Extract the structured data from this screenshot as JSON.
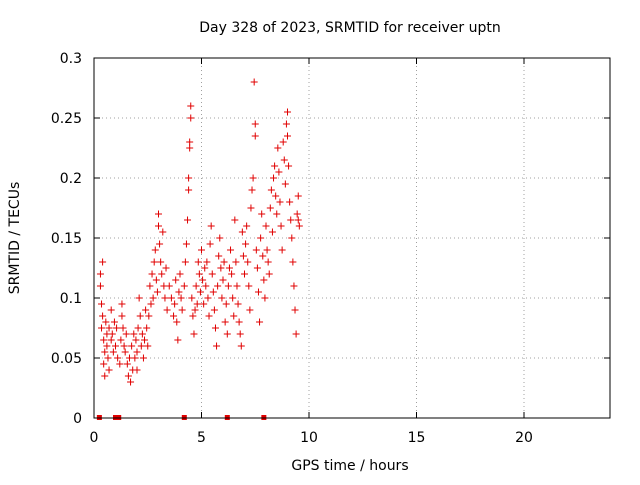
{
  "chart_data": {
    "type": "scatter",
    "title": "Day 328 of 2023, SRMTID for receiver uptn",
    "xlabel": "GPS time / hours",
    "ylabel": "SRMTID / TECUs",
    "xlim": [
      0,
      24
    ],
    "ylim": [
      0,
      0.3
    ],
    "grid": true,
    "x_ticks": [
      0,
      5,
      10,
      15,
      20
    ],
    "y_ticks": [
      0,
      0.05,
      0.1,
      0.15,
      0.2,
      0.25,
      0.3
    ],
    "x_tick_labels": [
      "0",
      "5",
      "10",
      "15",
      "20"
    ],
    "y_tick_labels": [
      "0",
      "0.05",
      "0.1",
      "0.15",
      "0.2",
      "0.25",
      "0.3"
    ],
    "marker": "+",
    "color": "#e00000",
    "series": [
      {
        "name": "SRMTID",
        "points": [
          [
            0.3,
            0.12
          ],
          [
            0.3,
            0.11
          ],
          [
            0.35,
            0.095
          ],
          [
            0.35,
            0.075
          ],
          [
            0.4,
            0.13
          ],
          [
            0.4,
            0.085
          ],
          [
            0.45,
            0.065
          ],
          [
            0.45,
            0.045
          ],
          [
            0.5,
            0.035
          ],
          [
            0.5,
            0.055
          ],
          [
            0.55,
            0.08
          ],
          [
            0.6,
            0.07
          ],
          [
            0.6,
            0.06
          ],
          [
            0.65,
            0.05
          ],
          [
            0.7,
            0.075
          ],
          [
            0.7,
            0.04
          ],
          [
            0.8,
            0.09
          ],
          [
            0.8,
            0.065
          ],
          [
            0.85,
            0.07
          ],
          [
            0.9,
            0.055
          ],
          [
            0.95,
            0.08
          ],
          [
            1.0,
            0.06
          ],
          [
            1.05,
            0.075
          ],
          [
            1.1,
            0.05
          ],
          [
            1.2,
            0.045
          ],
          [
            1.25,
            0.065
          ],
          [
            1.3,
            0.095
          ],
          [
            1.3,
            0.085
          ],
          [
            1.35,
            0.075
          ],
          [
            1.4,
            0.06
          ],
          [
            1.45,
            0.055
          ],
          [
            1.5,
            0.07
          ],
          [
            1.55,
            0.045
          ],
          [
            1.6,
            0.035
          ],
          [
            1.65,
            0.05
          ],
          [
            1.7,
            0.03
          ],
          [
            1.75,
            0.06
          ],
          [
            1.8,
            0.04
          ],
          [
            1.85,
            0.07
          ],
          [
            1.9,
            0.05
          ],
          [
            1.95,
            0.065
          ],
          [
            2.0,
            0.055
          ],
          [
            2.0,
            0.04
          ],
          [
            2.05,
            0.075
          ],
          [
            2.1,
            0.1
          ],
          [
            2.15,
            0.085
          ],
          [
            2.2,
            0.06
          ],
          [
            2.25,
            0.07
          ],
          [
            2.3,
            0.05
          ],
          [
            2.35,
            0.065
          ],
          [
            2.4,
            0.09
          ],
          [
            2.45,
            0.075
          ],
          [
            2.5,
            0.06
          ],
          [
            2.55,
            0.085
          ],
          [
            2.6,
            0.11
          ],
          [
            2.65,
            0.095
          ],
          [
            2.7,
            0.12
          ],
          [
            2.75,
            0.1
          ],
          [
            2.8,
            0.13
          ],
          [
            2.85,
            0.14
          ],
          [
            2.9,
            0.115
          ],
          [
            2.95,
            0.105
          ],
          [
            3.0,
            0.16
          ],
          [
            3.0,
            0.17
          ],
          [
            3.05,
            0.145
          ],
          [
            3.1,
            0.13
          ],
          [
            3.15,
            0.12
          ],
          [
            3.2,
            0.155
          ],
          [
            3.25,
            0.11
          ],
          [
            3.3,
            0.1
          ],
          [
            3.35,
            0.125
          ],
          [
            3.4,
            0.09
          ],
          [
            3.5,
            0.11
          ],
          [
            3.6,
            0.1
          ],
          [
            3.7,
            0.085
          ],
          [
            3.75,
            0.095
          ],
          [
            3.8,
            0.115
          ],
          [
            3.85,
            0.08
          ],
          [
            3.9,
            0.065
          ],
          [
            3.95,
            0.105
          ],
          [
            4.0,
            0.12
          ],
          [
            4.05,
            0.1
          ],
          [
            4.1,
            0.09
          ],
          [
            4.2,
            0.11
          ],
          [
            4.25,
            0.13
          ],
          [
            4.3,
            0.145
          ],
          [
            4.35,
            0.165
          ],
          [
            4.4,
            0.19
          ],
          [
            4.4,
            0.2
          ],
          [
            4.45,
            0.225
          ],
          [
            4.45,
            0.23
          ],
          [
            4.5,
            0.26
          ],
          [
            4.5,
            0.25
          ],
          [
            4.55,
            0.1
          ],
          [
            4.6,
            0.085
          ],
          [
            4.65,
            0.07
          ],
          [
            4.7,
            0.09
          ],
          [
            4.75,
            0.11
          ],
          [
            4.8,
            0.095
          ],
          [
            4.85,
            0.13
          ],
          [
            4.9,
            0.12
          ],
          [
            4.95,
            0.105
          ],
          [
            5.0,
            0.14
          ],
          [
            5.05,
            0.115
          ],
          [
            5.1,
            0.095
          ],
          [
            5.15,
            0.125
          ],
          [
            5.2,
            0.11
          ],
          [
            5.25,
            0.13
          ],
          [
            5.3,
            0.1
          ],
          [
            5.35,
            0.085
          ],
          [
            5.4,
            0.145
          ],
          [
            5.45,
            0.16
          ],
          [
            5.5,
            0.12
          ],
          [
            5.55,
            0.105
          ],
          [
            5.6,
            0.09
          ],
          [
            5.65,
            0.075
          ],
          [
            5.7,
            0.06
          ],
          [
            5.75,
            0.11
          ],
          [
            5.8,
            0.135
          ],
          [
            5.85,
            0.15
          ],
          [
            5.9,
            0.125
          ],
          [
            5.95,
            0.1
          ],
          [
            6.0,
            0.115
          ],
          [
            6.05,
            0.13
          ],
          [
            6.1,
            0.08
          ],
          [
            6.15,
            0.095
          ],
          [
            6.2,
            0.07
          ],
          [
            6.25,
            0.11
          ],
          [
            6.3,
            0.125
          ],
          [
            6.35,
            0.14
          ],
          [
            6.4,
            0.12
          ],
          [
            6.45,
            0.1
          ],
          [
            6.5,
            0.085
          ],
          [
            6.55,
            0.165
          ],
          [
            6.6,
            0.13
          ],
          [
            6.65,
            0.11
          ],
          [
            6.7,
            0.095
          ],
          [
            6.75,
            0.08
          ],
          [
            6.8,
            0.07
          ],
          [
            6.85,
            0.06
          ],
          [
            6.9,
            0.155
          ],
          [
            6.95,
            0.135
          ],
          [
            7.0,
            0.12
          ],
          [
            7.05,
            0.145
          ],
          [
            7.1,
            0.16
          ],
          [
            7.15,
            0.13
          ],
          [
            7.2,
            0.11
          ],
          [
            7.25,
            0.09
          ],
          [
            7.3,
            0.175
          ],
          [
            7.35,
            0.19
          ],
          [
            7.4,
            0.2
          ],
          [
            7.45,
            0.28
          ],
          [
            7.5,
            0.245
          ],
          [
            7.5,
            0.235
          ],
          [
            7.55,
            0.14
          ],
          [
            7.6,
            0.125
          ],
          [
            7.65,
            0.105
          ],
          [
            7.7,
            0.08
          ],
          [
            7.75,
            0.15
          ],
          [
            7.8,
            0.17
          ],
          [
            7.85,
            0.135
          ],
          [
            7.9,
            0.115
          ],
          [
            7.95,
            0.1
          ],
          [
            8.0,
            0.16
          ],
          [
            8.05,
            0.14
          ],
          [
            8.1,
            0.13
          ],
          [
            8.15,
            0.12
          ],
          [
            8.2,
            0.175
          ],
          [
            8.25,
            0.19
          ],
          [
            8.3,
            0.155
          ],
          [
            8.35,
            0.2
          ],
          [
            8.4,
            0.21
          ],
          [
            8.45,
            0.185
          ],
          [
            8.5,
            0.17
          ],
          [
            8.55,
            0.225
          ],
          [
            8.6,
            0.205
          ],
          [
            8.65,
            0.18
          ],
          [
            8.7,
            0.16
          ],
          [
            8.75,
            0.14
          ],
          [
            8.8,
            0.23
          ],
          [
            8.85,
            0.215
          ],
          [
            8.9,
            0.195
          ],
          [
            8.95,
            0.245
          ],
          [
            9.0,
            0.255
          ],
          [
            9.0,
            0.235
          ],
          [
            9.05,
            0.21
          ],
          [
            9.1,
            0.18
          ],
          [
            9.15,
            0.165
          ],
          [
            9.2,
            0.15
          ],
          [
            9.25,
            0.13
          ],
          [
            9.3,
            0.11
          ],
          [
            9.35,
            0.09
          ],
          [
            9.4,
            0.07
          ],
          [
            9.45,
            0.17
          ],
          [
            9.5,
            0.185
          ],
          [
            9.5,
            0.165
          ],
          [
            9.55,
            0.16
          ]
        ]
      }
    ],
    "zero_markers_x": [
      0.25,
      1.0,
      1.15,
      4.2,
      6.2,
      7.9
    ]
  }
}
